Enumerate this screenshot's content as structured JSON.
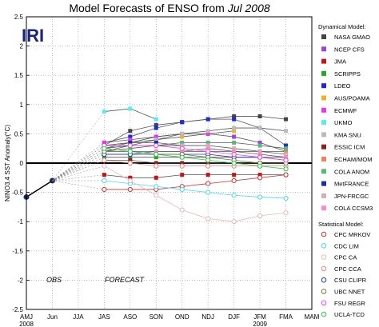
{
  "chart_data": {
    "type": "line",
    "title": "Model Forecasts of ENSO from",
    "title_date": "Jul 2008",
    "ylabel": "NINO3.4 SST Anomaly(°C)",
    "ylim": [
      -2.5,
      2.5
    ],
    "yticks": [
      -2.5,
      -2,
      -1.5,
      -1,
      -0.5,
      0,
      0.5,
      1,
      1.5,
      2,
      2.5
    ],
    "ytick_labels": [
      "-2.5",
      "-2",
      "-1.5",
      "-1",
      "-0.5",
      "0",
      "0.5",
      "1",
      "1.5",
      "2",
      "2.5"
    ],
    "categories": [
      "AMJ",
      "Jun",
      "JJA",
      "JAS",
      "ASO",
      "SON",
      "OND",
      "NDJ",
      "DJF",
      "JFM",
      "FMA",
      "MAM"
    ],
    "year_labels": [
      {
        "text": "2008",
        "at": "AMJ"
      },
      {
        "text": "2009",
        "at": "JFM"
      }
    ],
    "logo": "IRI",
    "annotations": {
      "obs": "OBS",
      "forecast": "FORECAST"
    },
    "grid": true,
    "legend_position": "right",
    "observed": {
      "x": [
        "AMJ",
        "Jun"
      ],
      "values": [
        -0.58,
        -0.3
      ]
    },
    "dynamical_title": "Dynamical Model:",
    "statistical_title": "Statistical Model:",
    "dynamical_series": [
      {
        "name": "NASA GMAO",
        "color": "#444444",
        "values": [
          0.3,
          0.55,
          0.65,
          0.7,
          0.75,
          0.8,
          0.8,
          0.75
        ]
      },
      {
        "name": "NCEP CFS",
        "color": "#a040e0",
        "values": [
          0.25,
          0.35,
          0.45,
          0.5,
          0.5,
          0.45,
          0.35,
          0.2
        ]
      },
      {
        "name": "JMA",
        "color": "#cc1111",
        "values": [
          -0.2,
          -0.25,
          -0.25,
          -0.2,
          -0.2,
          -0.2,
          -0.2,
          -0.2
        ]
      },
      {
        "name": "SCRIPPS",
        "color": "#22aa22",
        "values": [
          0.1,
          0.1,
          0.1,
          0.1,
          0.1,
          0.1,
          0.1,
          0.1
        ]
      },
      {
        "name": "LDEO",
        "color": "#1a2adf",
        "values": [
          0.35,
          0.45,
          0.6,
          0.7,
          0.75,
          0.75,
          0.6,
          0.3
        ]
      },
      {
        "name": "AUS/POAMA",
        "color": "#f0b020",
        "values": [
          0.3,
          0.35,
          0.4,
          0.45,
          0.5,
          0.55
        ]
      },
      {
        "name": "ECMWF",
        "color": "#ee33ee",
        "values": [
          0.35,
          0.4,
          0.45,
          0.5,
          0.5
        ]
      },
      {
        "name": "UKMO",
        "color": "#55eeee",
        "values": [
          0.88,
          0.93,
          0.75
        ]
      },
      {
        "name": "KMA SNU",
        "color": "#bbbbbb",
        "values": [
          0.2,
          0.3,
          0.4,
          0.5,
          0.55,
          0.6,
          0.6,
          0.55
        ]
      },
      {
        "name": "ESSIC ICM",
        "color": "#882222",
        "values": [
          0.05,
          0.05,
          0.0,
          0.0,
          0.0,
          0.0,
          0.0,
          0.0
        ]
      },
      {
        "name": "ECHAM/MOM",
        "color": "#f08060",
        "values": [
          0.2,
          0.2,
          0.2,
          0.2,
          0.2,
          0.2,
          0.2,
          0.2
        ]
      },
      {
        "name": "COLA ANOM",
        "color": "#55bb77",
        "values": [
          0.2,
          0.25,
          0.3,
          0.35,
          0.35,
          0.35,
          0.3,
          0.25
        ]
      },
      {
        "name": "MetFRANCE",
        "color": "#1133aa",
        "values": [
          0.3,
          0.35,
          0.35,
          0.3
        ]
      },
      {
        "name": "JPN-FRCGC",
        "color": "#d0b0b0",
        "values": [
          0.25,
          0.3,
          0.3,
          0.3,
          0.3,
          0.25,
          0.2,
          0.15
        ]
      },
      {
        "name": "COLA CCSM3",
        "color": "#ff88cc",
        "values": [
          0.15,
          0.15,
          0.2,
          0.2,
          0.25,
          0.2,
          0.15,
          0.1
        ]
      }
    ],
    "statistical_series": [
      {
        "name": "CPC MRKOV",
        "color": "#cc3333",
        "values": [
          -0.45,
          -0.45,
          -0.45,
          -0.4,
          -0.35,
          -0.3,
          -0.25,
          -0.2
        ]
      },
      {
        "name": "CDC LIM",
        "color": "#44ddee",
        "values": [
          -0.3,
          -0.35,
          -0.4,
          -0.45,
          -0.5,
          -0.55,
          -0.58,
          -0.6
        ]
      },
      {
        "name": "CPC CA",
        "color": "#e6b8b8",
        "values": [
          -0.05,
          -0.3,
          -0.55,
          -0.8,
          -0.95,
          -1.0,
          -0.9,
          -0.85
        ]
      },
      {
        "name": "CPC CCA",
        "color": "#f08080",
        "values": [
          0.05,
          0.0,
          -0.05,
          -0.05,
          -0.05,
          -0.05,
          -0.05,
          -0.05
        ]
      },
      {
        "name": "CSU CLIPR",
        "color": "#2233cc",
        "values": [
          0.15,
          0.15,
          0.15,
          0.15,
          0.15,
          0.1,
          0.1,
          0.05
        ]
      },
      {
        "name": "UBC NNET",
        "color": "#777733",
        "values": [
          0.2,
          0.2,
          0.15,
          0.15,
          0.1,
          0.05,
          0.0,
          0.0
        ]
      },
      {
        "name": "FSU REGR",
        "color": "#ee44ee",
        "values": [
          0.3,
          0.3,
          0.3,
          0.25,
          0.2,
          0.15,
          0.1,
          0.05
        ]
      },
      {
        "name": "UCLA-TCD",
        "color": "#22cc44",
        "values": [
          0.25,
          0.2,
          0.15,
          0.1,
          0.05,
          0.0,
          -0.05,
          -0.1
        ]
      }
    ]
  }
}
